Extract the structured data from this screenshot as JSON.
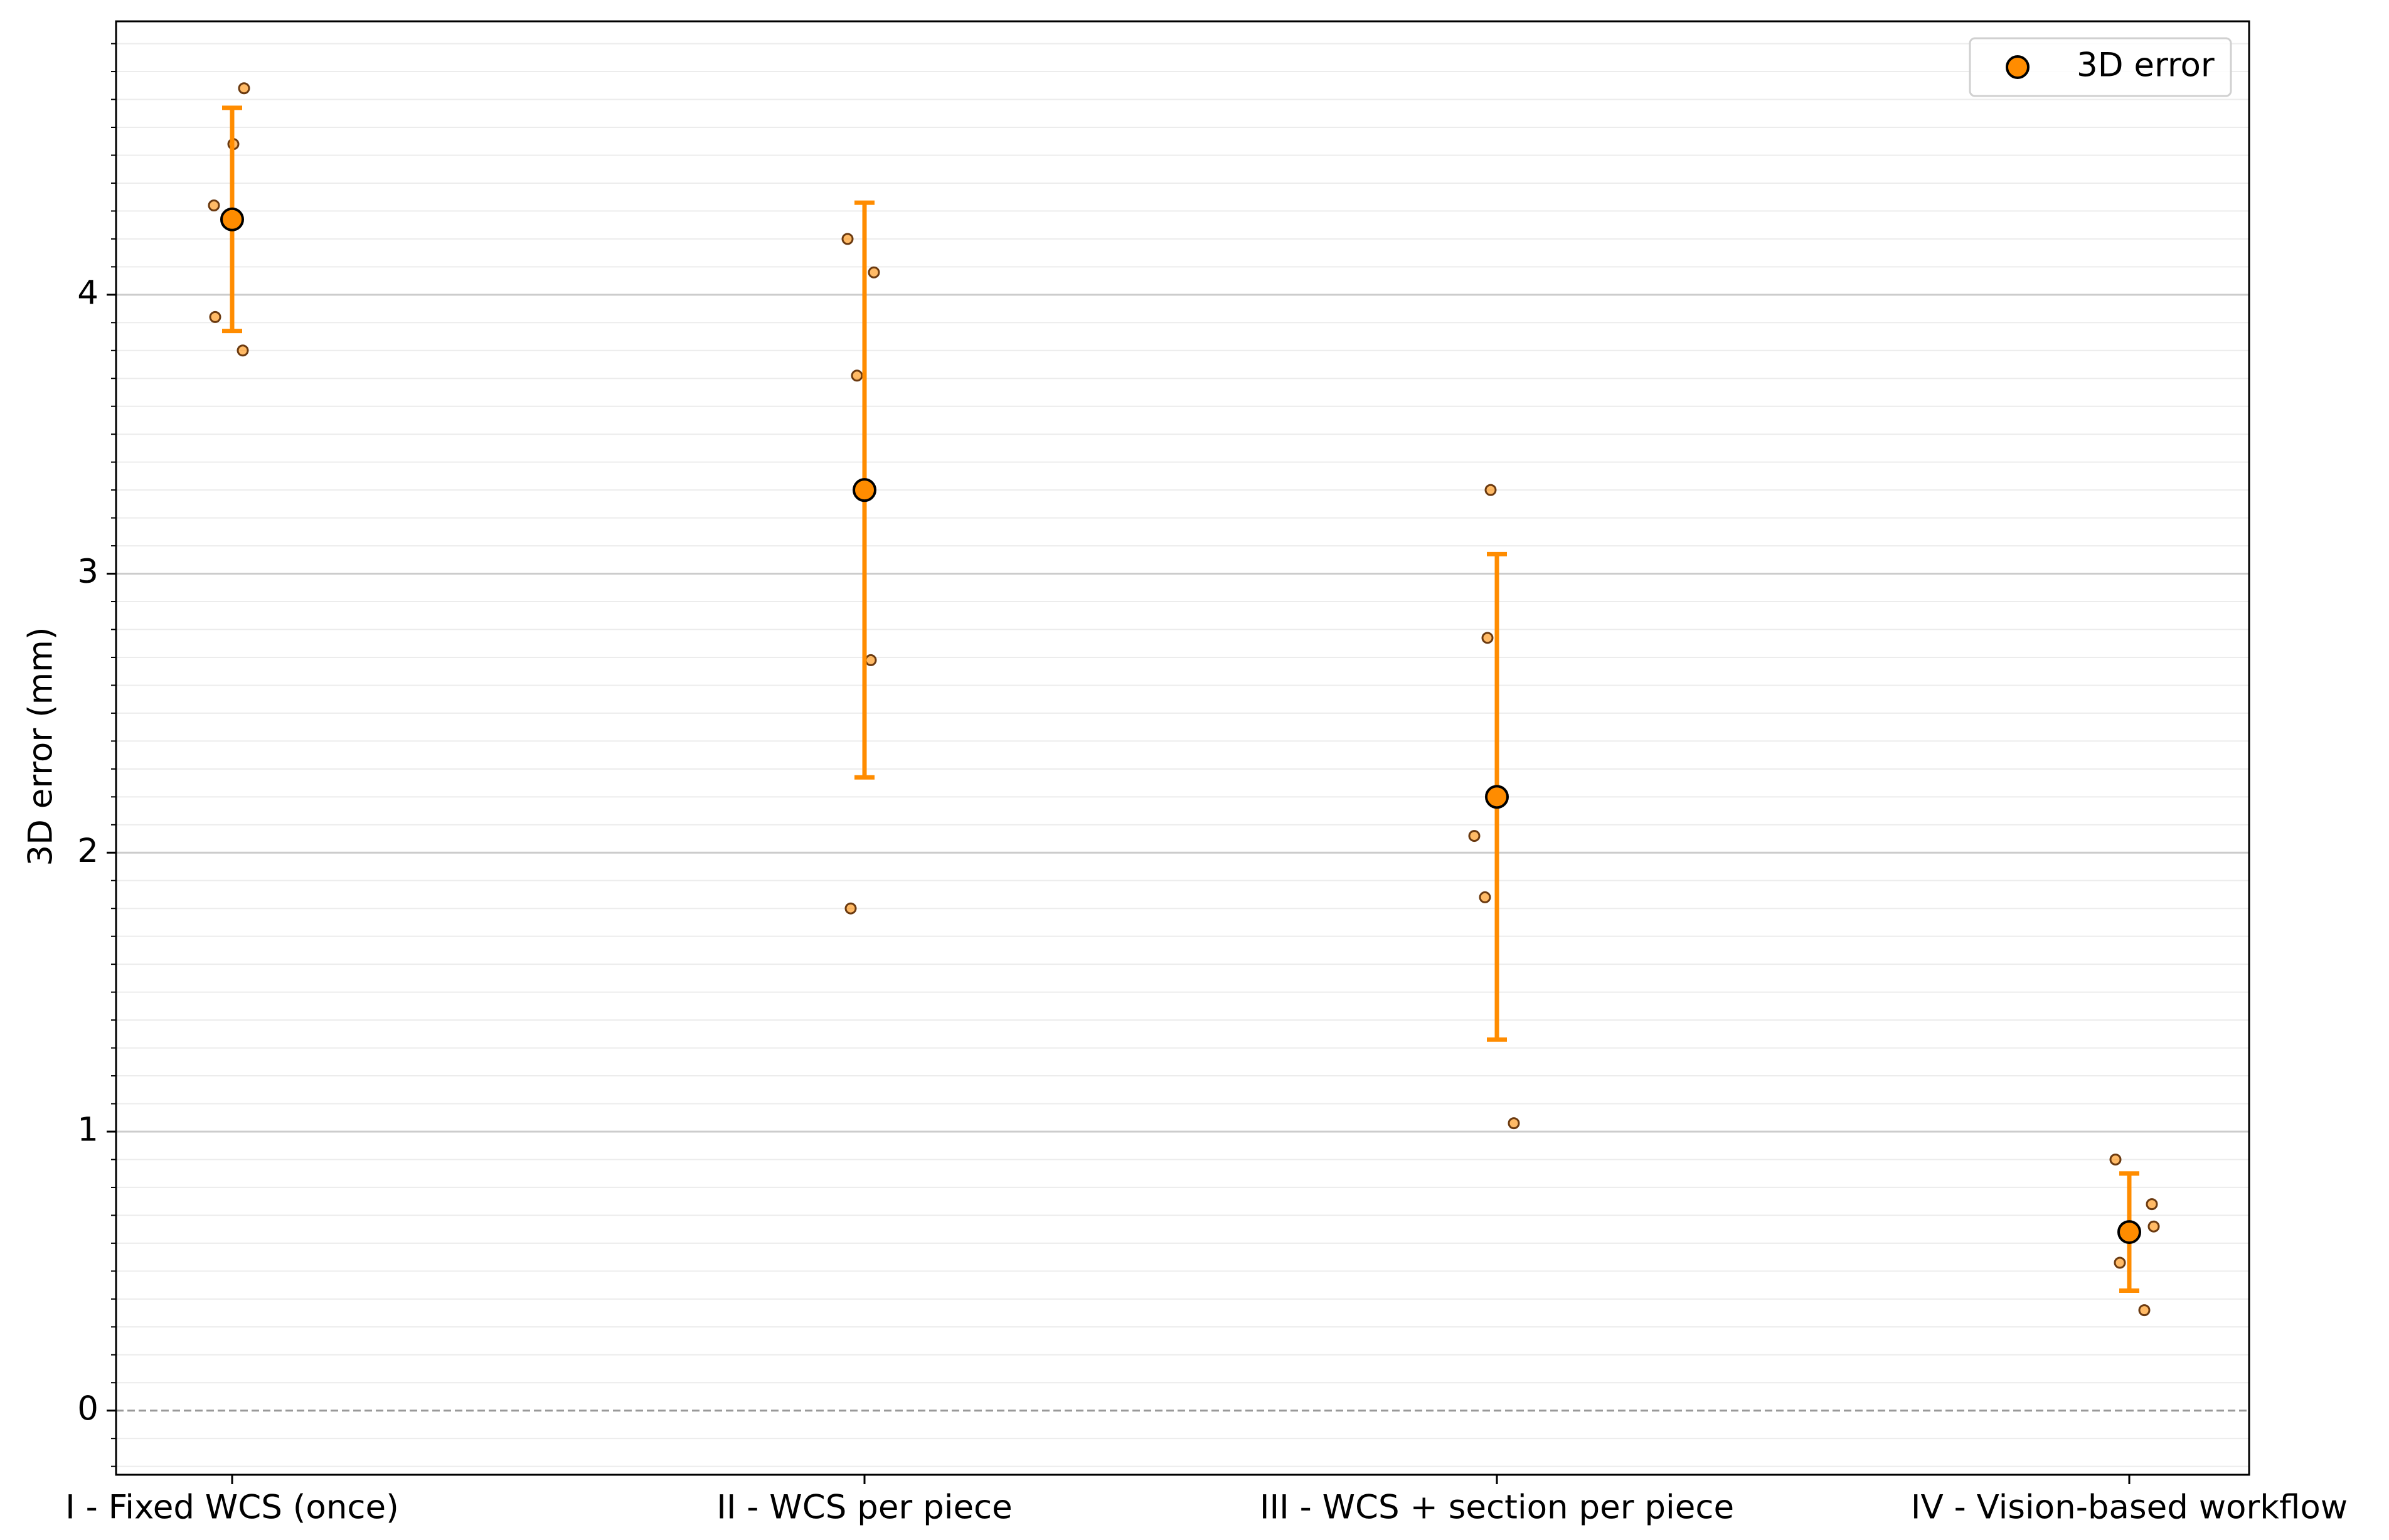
{
  "chart_data": {
    "type": "errorbar",
    "categories": [
      "I - Fixed WCS (once)",
      "II - WCS per piece",
      "III - WCS + section per piece",
      "IV - Vision-based workflow"
    ],
    "series": [
      {
        "name": "3D error",
        "color": "#ff8c00",
        "values": [
          4.27,
          3.3,
          2.2,
          0.64
        ],
        "errors": [
          0.4,
          1.03,
          0.87,
          0.21
        ]
      }
    ],
    "points": [
      [
        4.74,
        4.54,
        4.32,
        3.92,
        3.8
      ],
      [
        4.2,
        4.08,
        3.71,
        2.69,
        1.8
      ],
      [
        3.3,
        2.77,
        2.06,
        1.84,
        1.03
      ],
      [
        0.9,
        0.74,
        0.66,
        0.53,
        0.36
      ]
    ],
    "y_label": "3D error (mm)",
    "ylim": [
      -0.23,
      4.98
    ],
    "yticks": [
      0,
      1,
      2,
      3,
      4
    ],
    "minor_yticks": [
      -0.2,
      -0.1,
      0.1,
      0.2,
      0.3,
      0.4,
      0.5,
      0.6,
      0.7,
      0.8,
      0.9,
      1.1,
      1.2,
      1.3,
      1.4,
      1.5,
      1.6,
      1.7,
      1.8,
      1.9,
      2.1,
      2.2,
      2.3,
      2.4,
      2.5,
      2.6,
      2.7,
      2.8,
      2.9,
      3.1,
      3.2,
      3.3,
      3.4,
      3.5,
      3.6,
      3.7,
      3.8,
      3.9,
      4.1,
      4.2,
      4.3,
      4.4,
      4.5,
      4.6,
      4.7,
      4.8,
      4.9
    ],
    "grid": true,
    "legend": "upper right"
  }
}
